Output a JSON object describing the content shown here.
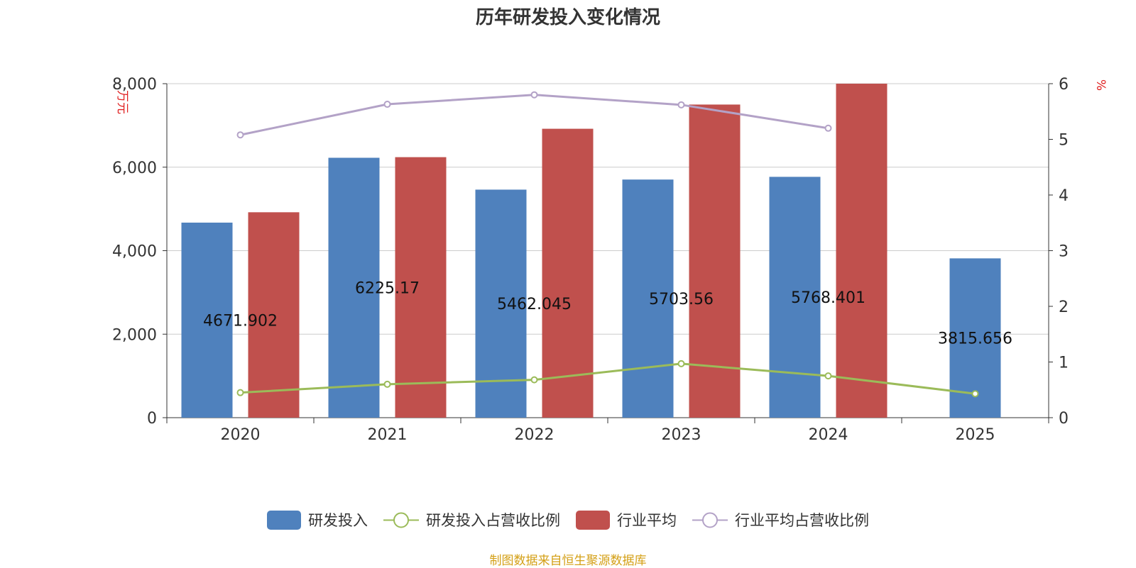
{
  "title": "历年研发投入变化情况",
  "source": "制图数据来自恒生聚源数据库",
  "colors": {
    "rd": "#4f81bd",
    "industry": "#c0504d",
    "rd_ratio": "#9bbb59",
    "industry_ratio": "#b3a2c7"
  },
  "chart_data": {
    "type": "bar",
    "categories": [
      "2020",
      "2021",
      "2022",
      "2023",
      "2024",
      "2025"
    ],
    "y_left": {
      "label": "万元",
      "ylim": [
        0,
        8000
      ],
      "ticks": [
        "0",
        "2,000",
        "4,000",
        "6,000",
        "8,000"
      ]
    },
    "y_right": {
      "label": "%",
      "ylim": [
        0,
        6
      ],
      "ticks": [
        "0",
        "1",
        "2",
        "3",
        "4",
        "5",
        "6"
      ]
    },
    "grid": true,
    "legend_position": "bottom",
    "series": [
      {
        "name": "研发投入",
        "type": "bar",
        "axis": "left",
        "values": [
          4671.902,
          6225.17,
          5462.045,
          5703.56,
          5768.401,
          3815.656
        ],
        "labels": [
          "4671.902",
          "6225.17",
          "5462.045",
          "5703.56",
          "5768.401",
          "3815.656"
        ]
      },
      {
        "name": "研发投入占营收比例",
        "type": "line",
        "axis": "right",
        "values": [
          0.45,
          0.6,
          0.68,
          0.97,
          0.75,
          0.43
        ]
      },
      {
        "name": "行业平均",
        "type": "bar",
        "axis": "left",
        "values": [
          4920,
          6240,
          6920,
          7500,
          8000,
          null
        ]
      },
      {
        "name": "行业平均占营收比例",
        "type": "line",
        "axis": "right",
        "values": [
          5.08,
          5.63,
          5.8,
          5.62,
          5.2,
          null
        ]
      }
    ]
  }
}
